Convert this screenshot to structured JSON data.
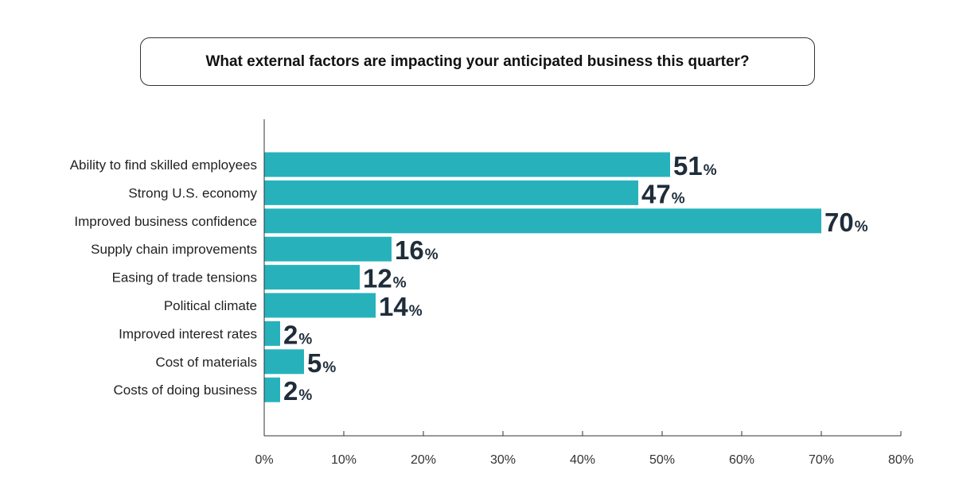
{
  "title": "What external factors are impacting your anticipated business this quarter?",
  "chart_data": {
    "type": "bar",
    "orientation": "horizontal",
    "title": "What external factors are impacting your anticipated business this quarter?",
    "categories": [
      "Ability to find skilled employees",
      "Strong U.S. economy",
      "Improved business confidence",
      "Supply chain improvements",
      "Easing of trade tensions",
      "Political climate",
      "Improved interest rates",
      "Cost of materials",
      "Costs of doing business"
    ],
    "values": [
      51,
      47,
      70,
      16,
      12,
      14,
      2,
      5,
      2
    ],
    "value_suffix": "%",
    "xlim": [
      0,
      80
    ],
    "xticks": [
      0,
      10,
      20,
      30,
      40,
      50,
      60,
      70,
      80
    ],
    "xtick_labels": [
      "0%",
      "10%",
      "20%",
      "30%",
      "40%",
      "50%",
      "60%",
      "70%",
      "80%"
    ],
    "xlabel": "",
    "ylabel": "",
    "grid": false,
    "legend": "none",
    "colors": {
      "bar": "#27b2bb",
      "value_text": "#1f2d3a",
      "axis": "#333333"
    }
  }
}
